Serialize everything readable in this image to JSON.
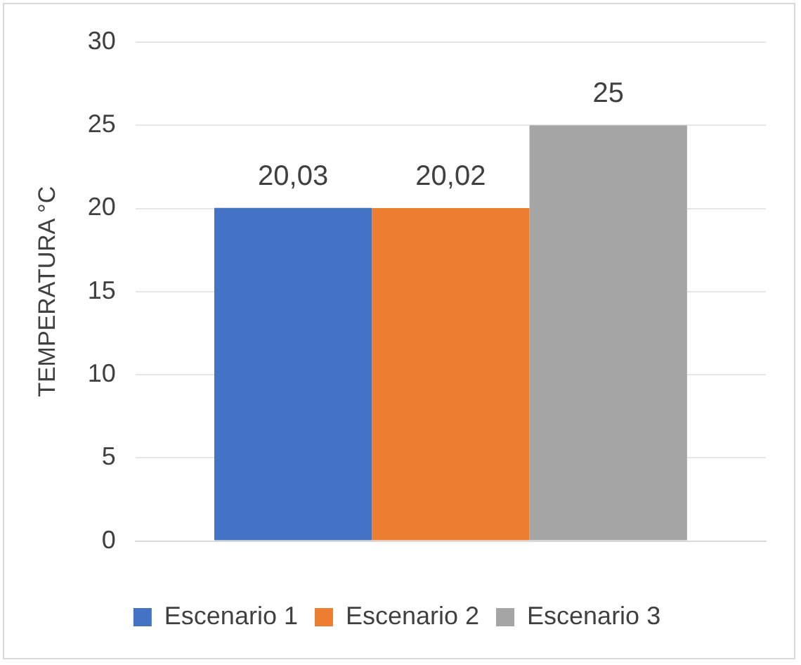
{
  "chart_data": {
    "type": "bar",
    "ylabel": "TEMPERATURA °C",
    "categories": [
      null
    ],
    "series": [
      {
        "name": "Escenario 1",
        "color": "#4472c4",
        "values": [
          20.03
        ],
        "value_labels": [
          "20,03"
        ]
      },
      {
        "name": "Escenario 2",
        "color": "#ed7d31",
        "values": [
          20.02
        ],
        "value_labels": [
          "20,02"
        ]
      },
      {
        "name": "Escenario 3",
        "color": "#a5a5a5",
        "values": [
          25
        ],
        "value_labels": [
          "25"
        ]
      }
    ],
    "ylim": [
      0,
      30
    ],
    "yticks": [
      0,
      5,
      10,
      15,
      20,
      25,
      30
    ],
    "grid": "y",
    "legend": "bottom"
  }
}
